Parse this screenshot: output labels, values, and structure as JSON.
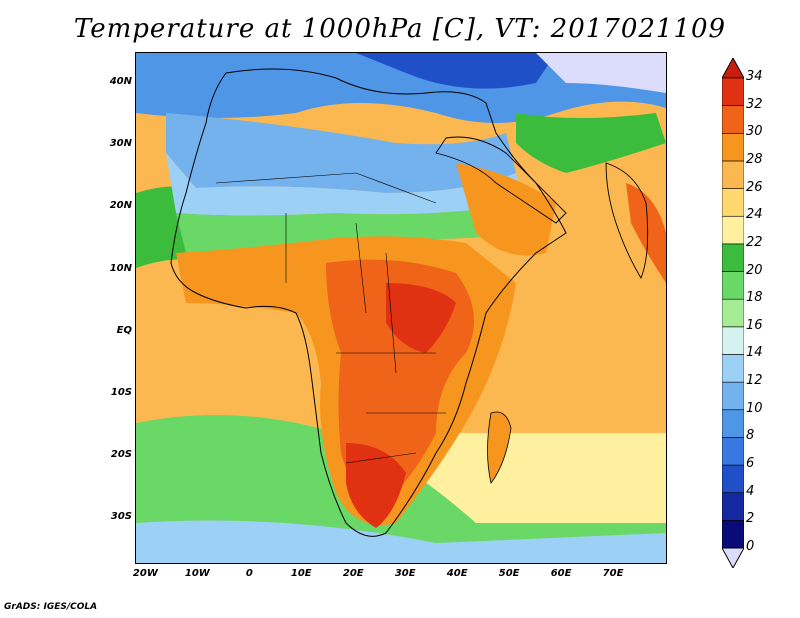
{
  "title": "Temperature at 1000hPa [C], VT: 2017021109",
  "credit": "GrADS: IGES/COLA",
  "lat_labels": [
    "40N",
    "30N",
    "20N",
    "10N",
    "EQ",
    "10S",
    "20S",
    "30S"
  ],
  "lat_values": [
    40,
    30,
    20,
    10,
    0,
    -10,
    -20,
    -30
  ],
  "lon_labels": [
    "20W",
    "10W",
    "0",
    "10E",
    "20E",
    "30E",
    "40E",
    "50E",
    "60E",
    "70E"
  ],
  "lon_values": [
    -20,
    -10,
    0,
    10,
    20,
    30,
    40,
    50,
    60,
    70
  ],
  "extent": {
    "lon_min": -22,
    "lon_max": 80,
    "lat_min": -37,
    "lat_max": 45
  },
  "colorbar": {
    "levels": [
      0,
      2,
      4,
      6,
      8,
      10,
      12,
      14,
      16,
      18,
      20,
      22,
      24,
      26,
      28,
      30,
      32,
      34
    ],
    "labels": [
      "0",
      "2",
      "4",
      "6",
      "8",
      "10",
      "12",
      "14",
      "16",
      "18",
      "20",
      "22",
      "24",
      "26",
      "28",
      "30",
      "32",
      "34"
    ],
    "colors": [
      "#0a0a78",
      "#1428a0",
      "#2050c8",
      "#3878e0",
      "#5096e6",
      "#74b2ee",
      "#9cd0f4",
      "#d4f2ee",
      "#a6ec96",
      "#6ad866",
      "#3cbc3c",
      "#fff0a0",
      "#ffd870",
      "#fcb850",
      "#f6961e",
      "#f0641a",
      "#e03212"
    ],
    "under_color": "#dcdcfc",
    "over_color": "#c81e0e"
  }
}
